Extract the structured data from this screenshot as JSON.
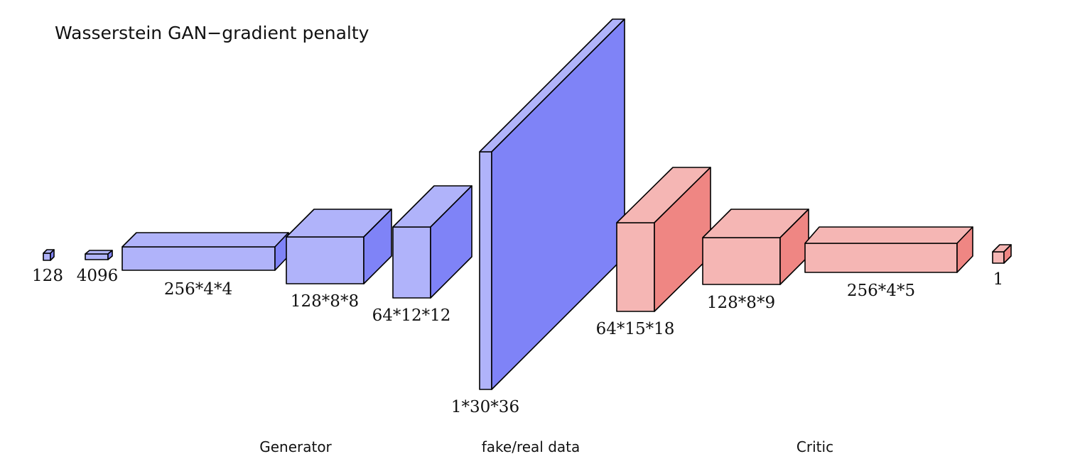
{
  "title": "Wasserstein GAN−gradient penalty",
  "colors": {
    "generator_front": "#b0b3fa",
    "generator_top": "#b0b3fa",
    "generator_side": "#7f83f7",
    "critic_front": "#f5b6b4",
    "critic_top": "#f5b6b4",
    "critic_side": "#ef8683",
    "edge": "#000000"
  },
  "layers": [
    {
      "label": "128",
      "group": "generator"
    },
    {
      "label": "4096",
      "group": "generator"
    },
    {
      "label": "256*4*4",
      "group": "generator"
    },
    {
      "label": "128*8*8",
      "group": "generator"
    },
    {
      "label": "64*12*12",
      "group": "generator"
    },
    {
      "label": "1*30*36",
      "group": "data"
    },
    {
      "label": "64*15*18",
      "group": "critic"
    },
    {
      "label": "128*8*9",
      "group": "critic"
    },
    {
      "label": "256*4*5",
      "group": "critic"
    },
    {
      "label": "1",
      "group": "critic"
    }
  ],
  "sections": {
    "generator": "Generator",
    "data": "fake/real data",
    "critic": "Critic"
  }
}
